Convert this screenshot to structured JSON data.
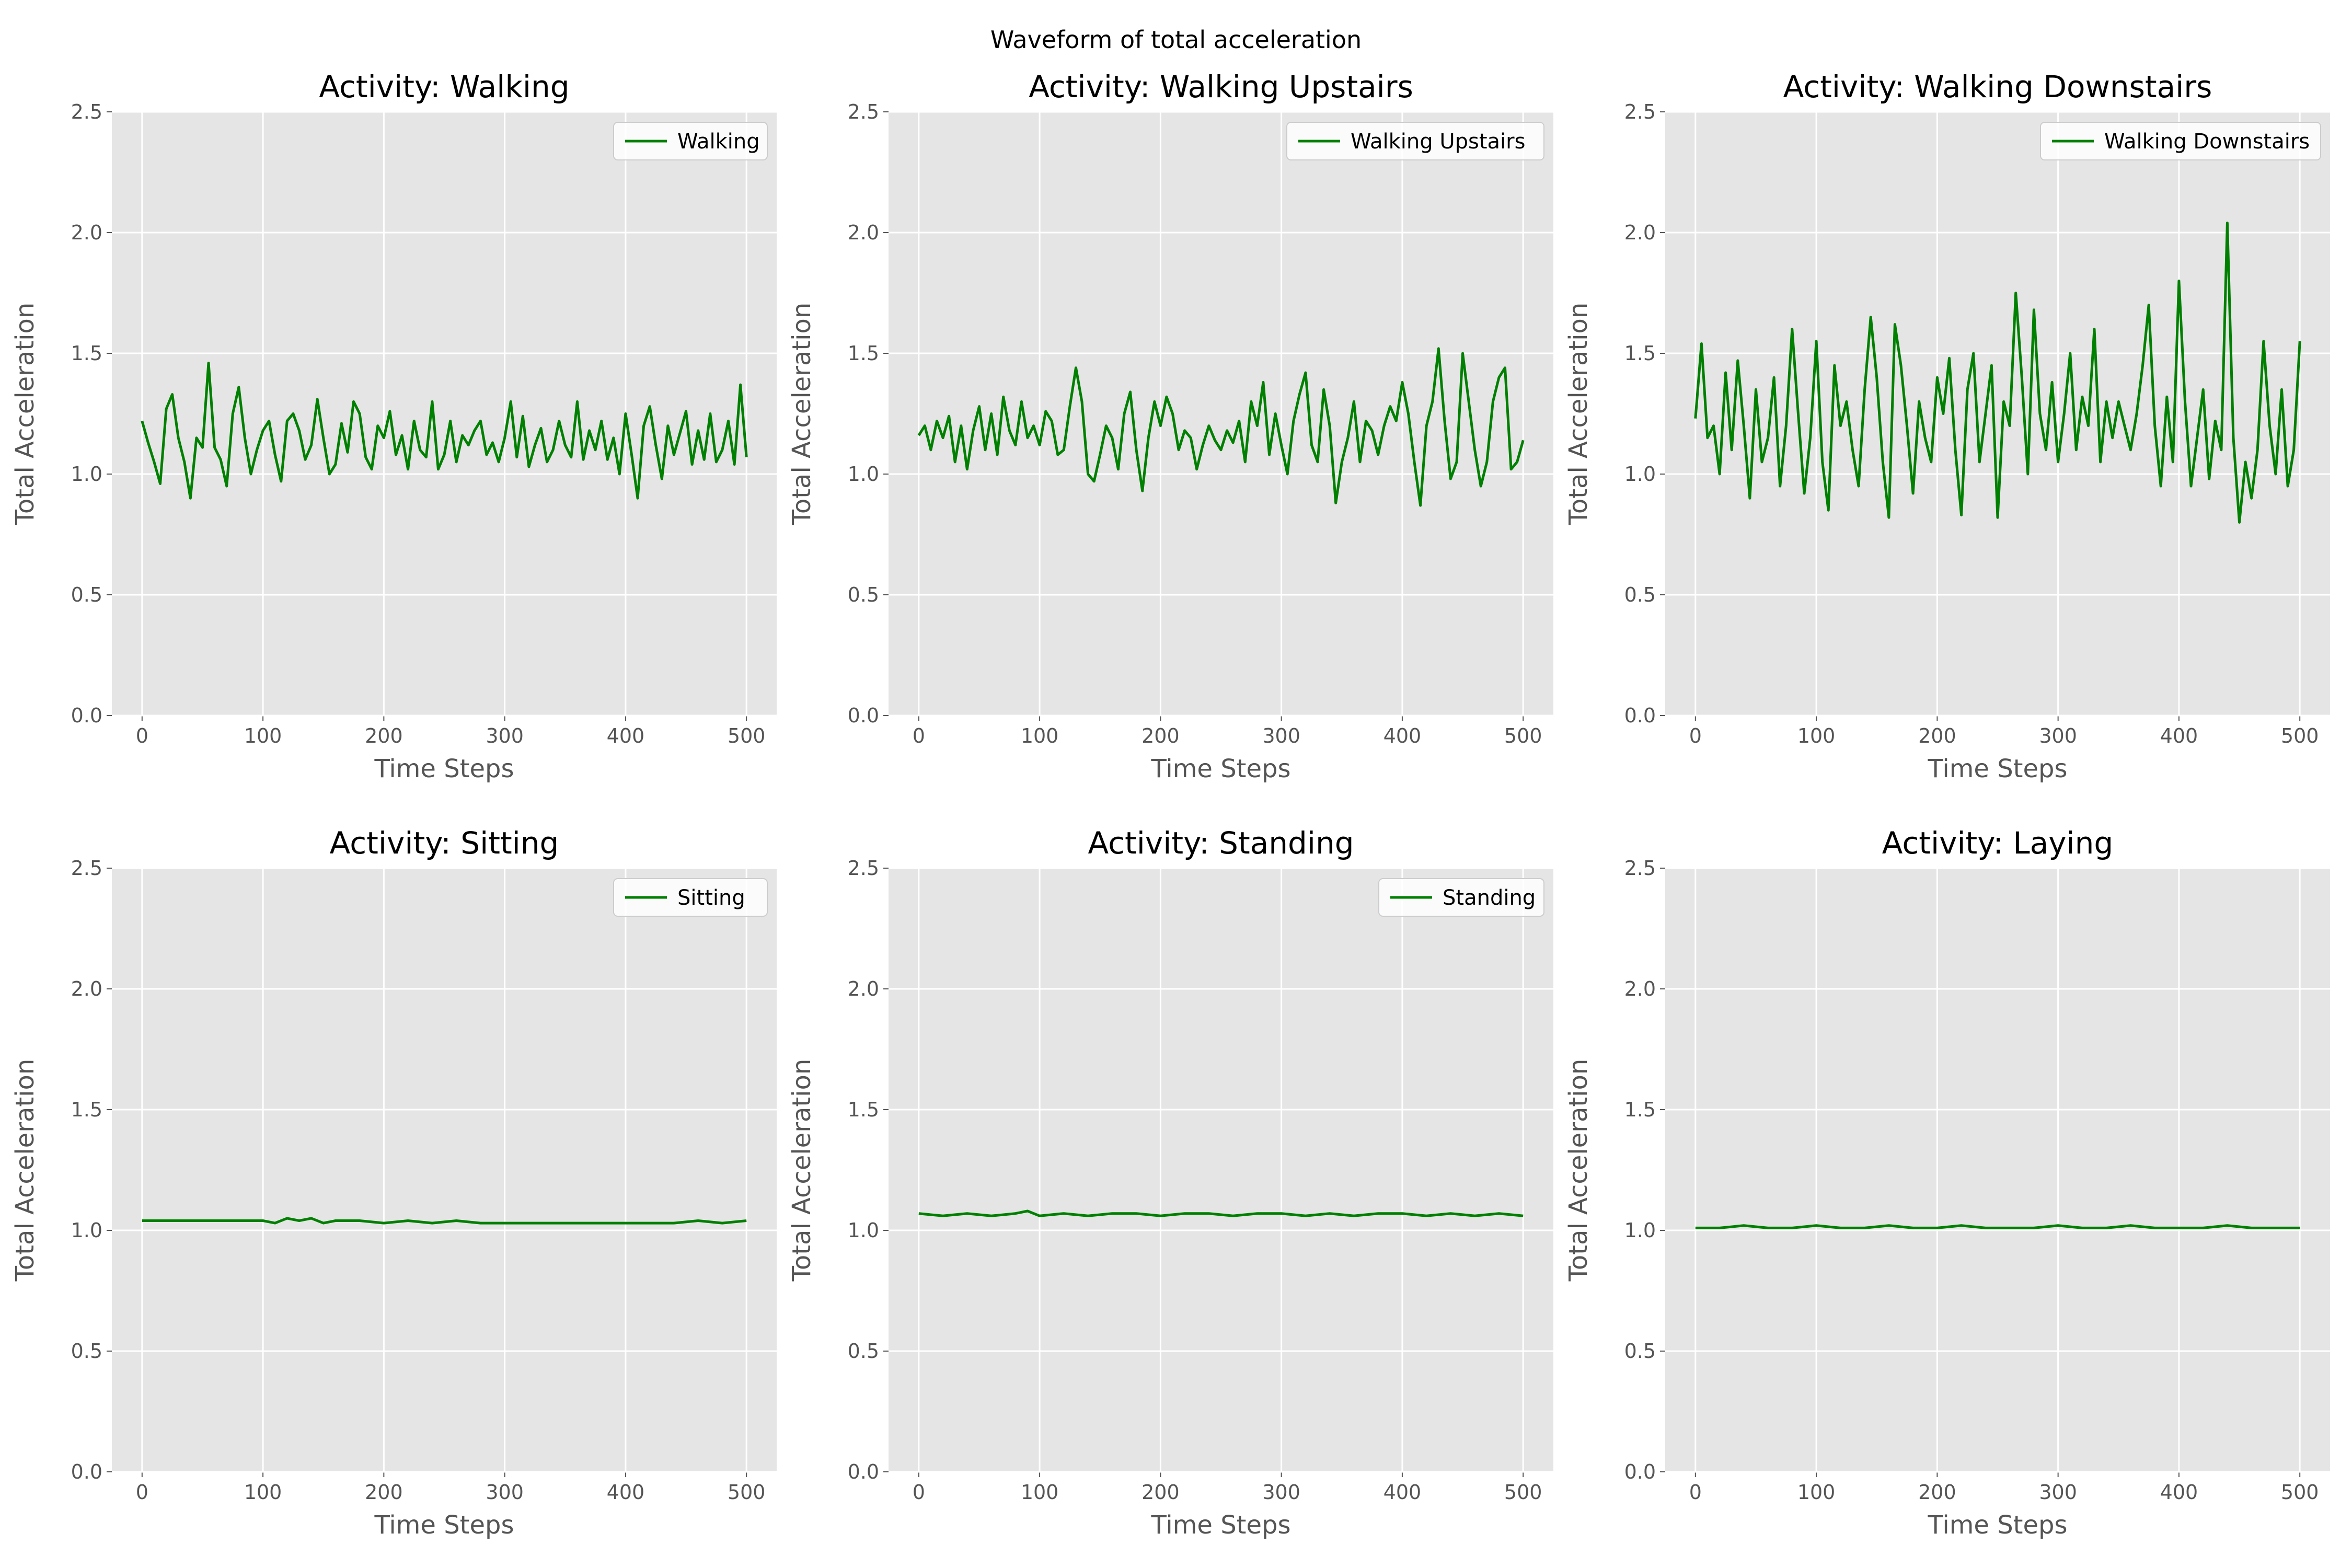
{
  "figure": {
    "suptitle": "Waveform of total acceleration",
    "line_color": "#008000",
    "axes_bg": "#e5e5e5",
    "grid_color": "#ffffff",
    "text_color": "#555555"
  },
  "chart_data": [
    {
      "type": "line",
      "title": "Activity: Walking",
      "xlabel": "Time Steps",
      "ylabel": "Total Acceleration",
      "xlim": [
        -25,
        525
      ],
      "ylim": [
        0,
        2.5
      ],
      "xticks": [
        "0",
        "100",
        "200",
        "300",
        "400",
        "500"
      ],
      "yticks": [
        "0.0",
        "0.5",
        "1.0",
        "1.5",
        "2.0",
        "2.5"
      ],
      "grid": true,
      "legend": "top-right",
      "series": [
        {
          "name": "Walking",
          "x": [
            0,
            5,
            10,
            15,
            20,
            25,
            30,
            35,
            40,
            45,
            50,
            55,
            60,
            65,
            70,
            75,
            80,
            85,
            90,
            95,
            100,
            105,
            110,
            115,
            120,
            125,
            130,
            135,
            140,
            145,
            150,
            155,
            160,
            165,
            170,
            175,
            180,
            185,
            190,
            195,
            200,
            205,
            210,
            215,
            220,
            225,
            230,
            235,
            240,
            245,
            250,
            255,
            260,
            265,
            270,
            275,
            280,
            285,
            290,
            295,
            300,
            305,
            310,
            315,
            320,
            325,
            330,
            335,
            340,
            345,
            350,
            355,
            360,
            365,
            370,
            375,
            380,
            385,
            390,
            395,
            400,
            405,
            410,
            415,
            420,
            425,
            430,
            435,
            440,
            445,
            450,
            455,
            460,
            465,
            470,
            475,
            480,
            485,
            490,
            495,
            500
          ],
          "y": [
            1.22,
            1.13,
            1.05,
            0.96,
            1.27,
            1.33,
            1.15,
            1.05,
            0.9,
            1.15,
            1.11,
            1.46,
            1.11,
            1.06,
            0.95,
            1.25,
            1.36,
            1.15,
            1.0,
            1.1,
            1.18,
            1.22,
            1.08,
            0.97,
            1.22,
            1.25,
            1.18,
            1.06,
            1.12,
            1.31,
            1.15,
            1.0,
            1.04,
            1.21,
            1.09,
            1.3,
            1.25,
            1.07,
            1.02,
            1.2,
            1.15,
            1.26,
            1.08,
            1.16,
            1.02,
            1.22,
            1.1,
            1.07,
            1.3,
            1.02,
            1.08,
            1.22,
            1.05,
            1.16,
            1.12,
            1.18,
            1.22,
            1.08,
            1.13,
            1.05,
            1.15,
            1.3,
            1.07,
            1.24,
            1.03,
            1.12,
            1.19,
            1.05,
            1.1,
            1.22,
            1.12,
            1.07,
            1.3,
            1.06,
            1.18,
            1.1,
            1.22,
            1.06,
            1.15,
            1.0,
            1.25,
            1.08,
            0.9,
            1.2,
            1.28,
            1.12,
            0.98,
            1.2,
            1.08,
            1.17,
            1.26,
            1.04,
            1.18,
            1.06,
            1.25,
            1.05,
            1.1,
            1.22,
            1.04,
            1.37,
            1.07
          ]
        }
      ]
    },
    {
      "type": "line",
      "title": "Activity: Walking Upstairs",
      "xlabel": "Time Steps",
      "ylabel": "Total Acceleration",
      "xlim": [
        -25,
        525
      ],
      "ylim": [
        0,
        2.5
      ],
      "xticks": [
        "0",
        "100",
        "200",
        "300",
        "400",
        "500"
      ],
      "yticks": [
        "0.0",
        "0.5",
        "1.0",
        "1.5",
        "2.0",
        "2.5"
      ],
      "grid": true,
      "legend": "top-right",
      "series": [
        {
          "name": "Walking Upstairs",
          "x": [
            0,
            5,
            10,
            15,
            20,
            25,
            30,
            35,
            40,
            45,
            50,
            55,
            60,
            65,
            70,
            75,
            80,
            85,
            90,
            95,
            100,
            105,
            110,
            115,
            120,
            125,
            130,
            135,
            140,
            145,
            150,
            155,
            160,
            165,
            170,
            175,
            180,
            185,
            190,
            195,
            200,
            205,
            210,
            215,
            220,
            225,
            230,
            235,
            240,
            245,
            250,
            255,
            260,
            265,
            270,
            275,
            280,
            285,
            290,
            295,
            300,
            305,
            310,
            315,
            320,
            325,
            330,
            335,
            340,
            345,
            350,
            355,
            360,
            365,
            370,
            375,
            380,
            385,
            390,
            395,
            400,
            405,
            410,
            415,
            420,
            425,
            430,
            435,
            440,
            445,
            450,
            455,
            460,
            465,
            470,
            475,
            480,
            485,
            490,
            495,
            500
          ],
          "y": [
            1.16,
            1.2,
            1.1,
            1.22,
            1.15,
            1.24,
            1.05,
            1.2,
            1.02,
            1.18,
            1.28,
            1.1,
            1.25,
            1.08,
            1.32,
            1.18,
            1.12,
            1.3,
            1.15,
            1.2,
            1.12,
            1.26,
            1.22,
            1.08,
            1.1,
            1.28,
            1.44,
            1.3,
            1.0,
            0.97,
            1.08,
            1.2,
            1.15,
            1.02,
            1.25,
            1.34,
            1.1,
            0.93,
            1.15,
            1.3,
            1.2,
            1.32,
            1.25,
            1.1,
            1.18,
            1.15,
            1.02,
            1.12,
            1.2,
            1.14,
            1.1,
            1.18,
            1.13,
            1.22,
            1.05,
            1.3,
            1.2,
            1.38,
            1.08,
            1.25,
            1.12,
            1.0,
            1.22,
            1.33,
            1.42,
            1.12,
            1.05,
            1.35,
            1.2,
            0.88,
            1.05,
            1.15,
            1.3,
            1.05,
            1.22,
            1.18,
            1.08,
            1.2,
            1.28,
            1.22,
            1.38,
            1.25,
            1.05,
            0.87,
            1.2,
            1.3,
            1.52,
            1.22,
            0.98,
            1.05,
            1.5,
            1.3,
            1.1,
            0.95,
            1.05,
            1.3,
            1.4,
            1.44,
            1.02,
            1.05,
            1.14
          ]
        }
      ]
    },
    {
      "type": "line",
      "title": "Activity: Walking Downstairs",
      "xlabel": "Time Steps",
      "ylabel": "Total Acceleration",
      "xlim": [
        -25,
        525
      ],
      "ylim": [
        0,
        2.5
      ],
      "xticks": [
        "0",
        "100",
        "200",
        "300",
        "400",
        "500"
      ],
      "yticks": [
        "0.0",
        "0.5",
        "1.0",
        "1.5",
        "2.0",
        "2.5"
      ],
      "grid": true,
      "legend": "top-right",
      "series": [
        {
          "name": "Walking Downstairs",
          "x": [
            0,
            5,
            10,
            15,
            20,
            25,
            30,
            35,
            40,
            45,
            50,
            55,
            60,
            65,
            70,
            75,
            80,
            85,
            90,
            95,
            100,
            105,
            110,
            115,
            120,
            125,
            130,
            135,
            140,
            145,
            150,
            155,
            160,
            165,
            170,
            175,
            180,
            185,
            190,
            195,
            200,
            205,
            210,
            215,
            220,
            225,
            230,
            235,
            240,
            245,
            250,
            255,
            260,
            265,
            270,
            275,
            280,
            285,
            290,
            295,
            300,
            305,
            310,
            315,
            320,
            325,
            330,
            335,
            340,
            345,
            350,
            355,
            360,
            365,
            370,
            375,
            380,
            385,
            390,
            395,
            400,
            405,
            410,
            415,
            420,
            425,
            430,
            435,
            440,
            445,
            450,
            455,
            460,
            465,
            470,
            475,
            480,
            485,
            490,
            495,
            500
          ],
          "y": [
            1.23,
            1.54,
            1.15,
            1.2,
            1.0,
            1.42,
            1.1,
            1.47,
            1.2,
            0.9,
            1.35,
            1.05,
            1.15,
            1.4,
            0.95,
            1.2,
            1.6,
            1.25,
            0.92,
            1.15,
            1.55,
            1.05,
            0.85,
            1.45,
            1.2,
            1.3,
            1.1,
            0.95,
            1.35,
            1.65,
            1.4,
            1.05,
            0.82,
            1.62,
            1.45,
            1.2,
            0.92,
            1.3,
            1.15,
            1.05,
            1.4,
            1.25,
            1.48,
            1.1,
            0.83,
            1.35,
            1.5,
            1.05,
            1.25,
            1.45,
            0.82,
            1.3,
            1.2,
            1.75,
            1.4,
            1.0,
            1.68,
            1.25,
            1.1,
            1.38,
            1.05,
            1.25,
            1.5,
            1.1,
            1.32,
            1.2,
            1.6,
            1.05,
            1.3,
            1.15,
            1.3,
            1.2,
            1.1,
            1.25,
            1.45,
            1.7,
            1.2,
            0.95,
            1.32,
            1.05,
            1.8,
            1.3,
            0.95,
            1.15,
            1.35,
            0.98,
            1.22,
            1.1,
            2.04,
            1.15,
            0.8,
            1.05,
            0.9,
            1.1,
            1.55,
            1.2,
            1.0,
            1.35,
            0.95,
            1.1,
            1.55
          ]
        }
      ]
    },
    {
      "type": "line",
      "title": "Activity: Sitting",
      "xlabel": "Time Steps",
      "ylabel": "Total Acceleration",
      "xlim": [
        -25,
        525
      ],
      "ylim": [
        0,
        2.5
      ],
      "xticks": [
        "0",
        "100",
        "200",
        "300",
        "400",
        "500"
      ],
      "yticks": [
        "0.0",
        "0.5",
        "1.0",
        "1.5",
        "2.0",
        "2.5"
      ],
      "grid": true,
      "legend": "top-right",
      "series": [
        {
          "name": "Sitting",
          "x": [
            0,
            20,
            40,
            60,
            80,
            100,
            110,
            120,
            130,
            140,
            150,
            160,
            180,
            200,
            220,
            240,
            260,
            280,
            300,
            320,
            340,
            360,
            380,
            400,
            420,
            440,
            460,
            480,
            500
          ],
          "y": [
            1.04,
            1.04,
            1.04,
            1.04,
            1.04,
            1.04,
            1.03,
            1.05,
            1.04,
            1.05,
            1.03,
            1.04,
            1.04,
            1.03,
            1.04,
            1.03,
            1.04,
            1.03,
            1.03,
            1.03,
            1.03,
            1.03,
            1.03,
            1.03,
            1.03,
            1.03,
            1.04,
            1.03,
            1.04
          ]
        }
      ]
    },
    {
      "type": "line",
      "title": "Activity: Standing",
      "xlabel": "Time Steps",
      "ylabel": "Total Acceleration",
      "xlim": [
        -25,
        525
      ],
      "ylim": [
        0,
        2.5
      ],
      "xticks": [
        "0",
        "100",
        "200",
        "300",
        "400",
        "500"
      ],
      "yticks": [
        "0.0",
        "0.5",
        "1.0",
        "1.5",
        "2.0",
        "2.5"
      ],
      "grid": true,
      "legend": "top-right",
      "series": [
        {
          "name": "Standing",
          "x": [
            0,
            20,
            40,
            60,
            80,
            90,
            100,
            120,
            140,
            160,
            180,
            200,
            220,
            240,
            260,
            280,
            300,
            320,
            340,
            360,
            380,
            400,
            420,
            440,
            460,
            480,
            500
          ],
          "y": [
            1.07,
            1.06,
            1.07,
            1.06,
            1.07,
            1.08,
            1.06,
            1.07,
            1.06,
            1.07,
            1.07,
            1.06,
            1.07,
            1.07,
            1.06,
            1.07,
            1.07,
            1.06,
            1.07,
            1.06,
            1.07,
            1.07,
            1.06,
            1.07,
            1.06,
            1.07,
            1.06
          ]
        }
      ]
    },
    {
      "type": "line",
      "title": "Activity: Laying",
      "xlabel": "Time Steps",
      "ylabel": "Total Acceleration",
      "xlim": [
        -25,
        525
      ],
      "ylim": [
        0,
        2.5
      ],
      "xticks": [
        "0",
        "100",
        "200",
        "300",
        "400",
        "500"
      ],
      "yticks": [
        "0.0",
        "0.5",
        "1.0",
        "1.5",
        "2.0",
        "2.5"
      ],
      "grid": true,
      "legend": "none",
      "series": [
        {
          "name": "",
          "x": [
            0,
            20,
            40,
            60,
            80,
            100,
            120,
            140,
            160,
            180,
            200,
            220,
            240,
            260,
            280,
            300,
            320,
            340,
            360,
            380,
            400,
            420,
            440,
            460,
            480,
            500
          ],
          "y": [
            1.01,
            1.01,
            1.02,
            1.01,
            1.01,
            1.02,
            1.01,
            1.01,
            1.02,
            1.01,
            1.01,
            1.02,
            1.01,
            1.01,
            1.01,
            1.02,
            1.01,
            1.01,
            1.02,
            1.01,
            1.01,
            1.01,
            1.02,
            1.01,
            1.01,
            1.01
          ]
        }
      ]
    }
  ]
}
